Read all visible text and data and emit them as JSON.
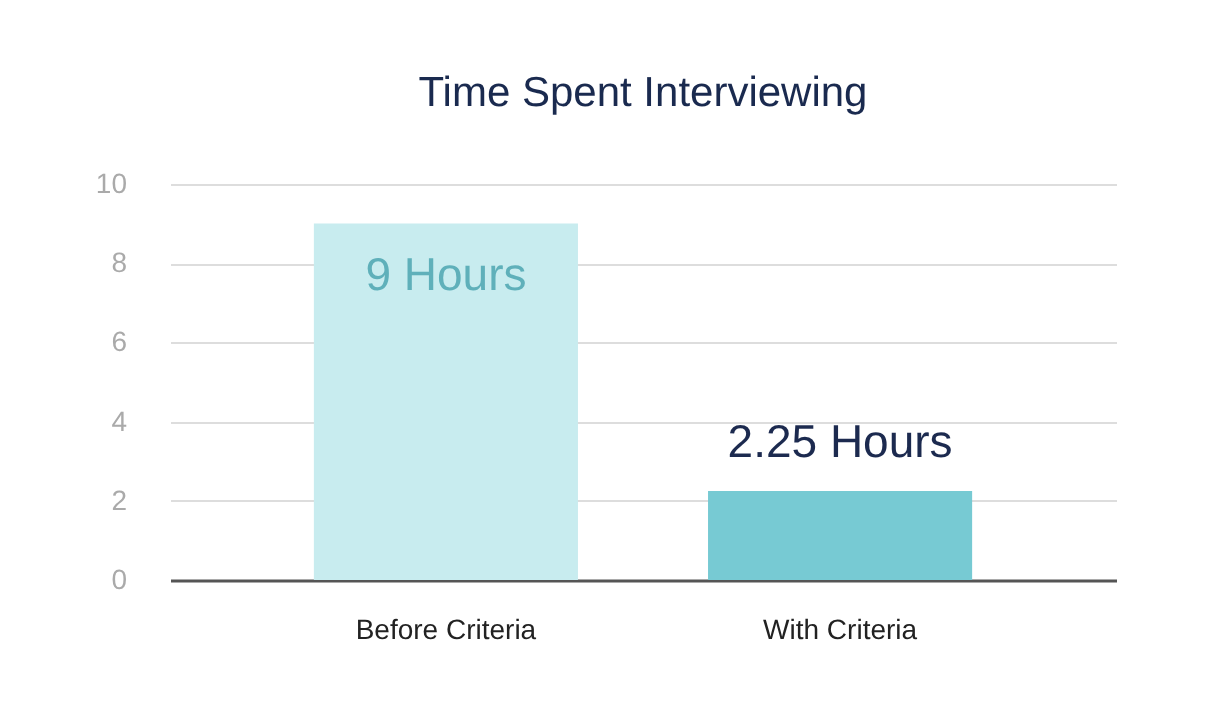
{
  "chart_data": {
    "type": "bar",
    "title": "Time Spent Interviewing",
    "categories": [
      "Before Criteria",
      "With Criteria"
    ],
    "values": [
      9,
      2.25
    ],
    "colors": [
      "#c8ecef",
      "#77cad3"
    ],
    "value_labels": [
      "9 Hours",
      "2.25 Hours"
    ],
    "ylim": [
      0,
      10
    ],
    "yticks": [
      0,
      2,
      4,
      6,
      8,
      10
    ],
    "grid": "y"
  }
}
